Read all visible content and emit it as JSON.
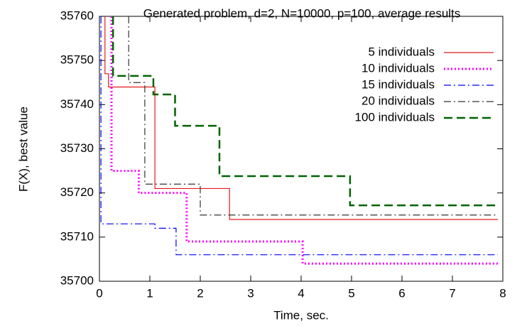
{
  "chart_data": {
    "type": "line",
    "title": "Generated problem, d=2, N=10000, p=100, average results",
    "x_label": "Time, sec.",
    "y_label": "F(X), best value",
    "xlim": [
      0,
      8
    ],
    "xticks": [
      0,
      1,
      2,
      3,
      4,
      5,
      6,
      7,
      8
    ],
    "ylim": [
      35700,
      35760
    ],
    "yticks": [
      35700,
      35710,
      35720,
      35730,
      35740,
      35750,
      35760
    ],
    "legend": "top-right",
    "series": [
      {
        "name": "5 individuals",
        "color": "#e41a1c",
        "dash": "solid",
        "x": [
          0.11,
          0.11,
          0.18,
          1.1,
          2.58,
          7.9
        ],
        "values": [
          35760,
          35747,
          35744,
          35721,
          35714,
          35714
        ]
      },
      {
        "name": "10 individuals",
        "color": "#ff00ff",
        "dash": "dotted",
        "x": [
          0.24,
          0.24,
          0.78,
          1.73,
          4.03,
          7.9
        ],
        "values": [
          35760,
          35725,
          35720,
          35709,
          35704,
          35704
        ]
      },
      {
        "name": "15 individuals",
        "color": "#0000ff",
        "dash": "dashdot",
        "x": [
          0.03,
          0.03,
          1.1,
          1.52,
          7.9
        ],
        "values": [
          35760,
          35713,
          35712,
          35706,
          35706
        ]
      },
      {
        "name": "20 individuals",
        "color": "#333333",
        "dash": "dashdot",
        "x": [
          0.58,
          0.58,
          0.9,
          2.0,
          7.9
        ],
        "values": [
          35760,
          35745,
          35722,
          35715,
          35715
        ]
      },
      {
        "name": "100 individuals",
        "color": "#006400",
        "dash": "dashed",
        "x": [
          0.27,
          0.27,
          1.07,
          1.5,
          2.38,
          4.97,
          7.9
        ],
        "values": [
          35760,
          35746.5,
          35742.3,
          35735.2,
          35723.8,
          35717.2,
          35717.2
        ]
      }
    ]
  }
}
